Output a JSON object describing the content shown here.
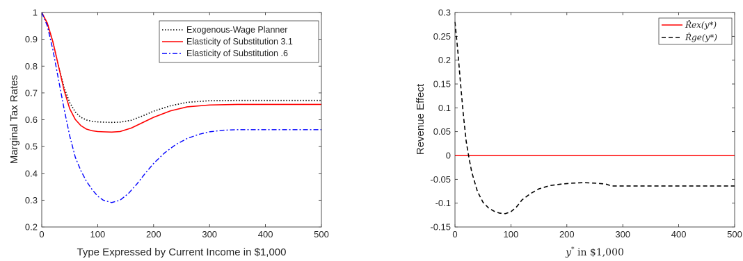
{
  "figure": {
    "left": {
      "ylabel": "Marginal Tax Rates",
      "xlabel": "Type Expressed by Current Income in $1,000"
    },
    "right": {
      "ylabel": "Revenue Effect",
      "xlabel_var": "y",
      "xlabel_sup": "*",
      "xlabel_rest": " in $1,000"
    }
  },
  "chart_data": [
    {
      "type": "line",
      "title": "",
      "xlabel": "Type Expressed by Current Income in $1,000",
      "ylabel": "Marginal Tax Rates",
      "xlim": [
        0,
        500
      ],
      "ylim": [
        0.2,
        1
      ],
      "xticks": [
        0,
        100,
        200,
        300,
        400,
        500
      ],
      "yticks": [
        0.2,
        0.3,
        0.4,
        0.5,
        0.6,
        0.7,
        0.8,
        0.9,
        1
      ],
      "ytick_labels": [
        "0.2",
        "0.3",
        "0.4",
        "0.5",
        "0.6",
        "0.7",
        "0.8",
        "0.9",
        "1"
      ],
      "grid": false,
      "legend_position": "top-right",
      "series": [
        {
          "name": "Exogenous-Wage Planner",
          "color": "#000000",
          "dash": "dotted",
          "x": [
            0,
            10,
            20,
            30,
            40,
            50,
            60,
            70,
            80,
            90,
            100,
            110,
            125,
            140,
            160,
            180,
            200,
            230,
            260,
            300,
            350,
            400,
            450,
            500
          ],
          "y": [
            1.0,
            0.96,
            0.89,
            0.8,
            0.72,
            0.664,
            0.629,
            0.609,
            0.599,
            0.594,
            0.592,
            0.591,
            0.59,
            0.591,
            0.598,
            0.614,
            0.632,
            0.652,
            0.665,
            0.671,
            0.672,
            0.672,
            0.672,
            0.672
          ]
        },
        {
          "name": "Elasticity of Substitution 3.1",
          "color": "#ff0000",
          "dash": "solid",
          "x": [
            0,
            10,
            20,
            30,
            40,
            50,
            60,
            70,
            80,
            90,
            100,
            110,
            125,
            140,
            160,
            180,
            200,
            230,
            260,
            300,
            350,
            400,
            450,
            500
          ],
          "y": [
            1.0,
            0.96,
            0.89,
            0.8,
            0.71,
            0.641,
            0.601,
            0.578,
            0.565,
            0.559,
            0.556,
            0.555,
            0.554,
            0.556,
            0.569,
            0.589,
            0.609,
            0.633,
            0.648,
            0.655,
            0.657,
            0.657,
            0.657,
            0.657
          ]
        },
        {
          "name": "Elasticity of Substitution .6",
          "color": "#0000ff",
          "dash": "dashdot",
          "x": [
            0,
            10,
            20,
            30,
            40,
            50,
            60,
            70,
            80,
            90,
            100,
            110,
            125,
            140,
            155,
            170,
            185,
            200,
            220,
            240,
            260,
            280,
            300,
            325,
            350,
            400,
            450,
            500
          ],
          "y": [
            1.0,
            0.95,
            0.86,
            0.75,
            0.64,
            0.54,
            0.46,
            0.41,
            0.37,
            0.34,
            0.315,
            0.3,
            0.291,
            0.3,
            0.325,
            0.36,
            0.4,
            0.437,
            0.477,
            0.508,
            0.53,
            0.545,
            0.555,
            0.561,
            0.563,
            0.563,
            0.563,
            0.563
          ]
        }
      ]
    },
    {
      "type": "line",
      "title": "",
      "xlabel": "y* in $1,000",
      "ylabel": "Revenue Effect",
      "xlim": [
        0,
        500
      ],
      "ylim": [
        -0.15,
        0.3
      ],
      "xticks": [
        0,
        100,
        200,
        300,
        400,
        500
      ],
      "yticks": [
        -0.15,
        -0.1,
        -0.05,
        0,
        0.05,
        0.1,
        0.15,
        0.2,
        0.25,
        0.3
      ],
      "ytick_labels": [
        "-0.15",
        "-0.1",
        "-0.05",
        "0",
        "0.05",
        "0.1",
        "0.15",
        "0.2",
        "0.25",
        "0.3"
      ],
      "grid": false,
      "legend_position": "top-right",
      "series": [
        {
          "name": "R̂ex(y*)",
          "color": "#ff0000",
          "dash": "solid",
          "x": [
            0,
            500
          ],
          "y": [
            0,
            0
          ]
        },
        {
          "name": "R̂ge(y*)",
          "color": "#000000",
          "dash": "dashed",
          "x": [
            0,
            5,
            10,
            15,
            20,
            25,
            30,
            40,
            50,
            60,
            70,
            80,
            90,
            100,
            110,
            120,
            135,
            150,
            170,
            190,
            210,
            230,
            250,
            270,
            280,
            300,
            350,
            400,
            450,
            500
          ],
          "y": [
            0.28,
            0.22,
            0.15,
            0.085,
            0.03,
            -0.005,
            -0.035,
            -0.075,
            -0.098,
            -0.11,
            -0.117,
            -0.121,
            -0.122,
            -0.118,
            -0.108,
            -0.093,
            -0.08,
            -0.07,
            -0.063,
            -0.06,
            -0.058,
            -0.057,
            -0.058,
            -0.06,
            -0.064,
            -0.064,
            -0.064,
            -0.064,
            -0.064,
            -0.064
          ]
        }
      ]
    }
  ]
}
